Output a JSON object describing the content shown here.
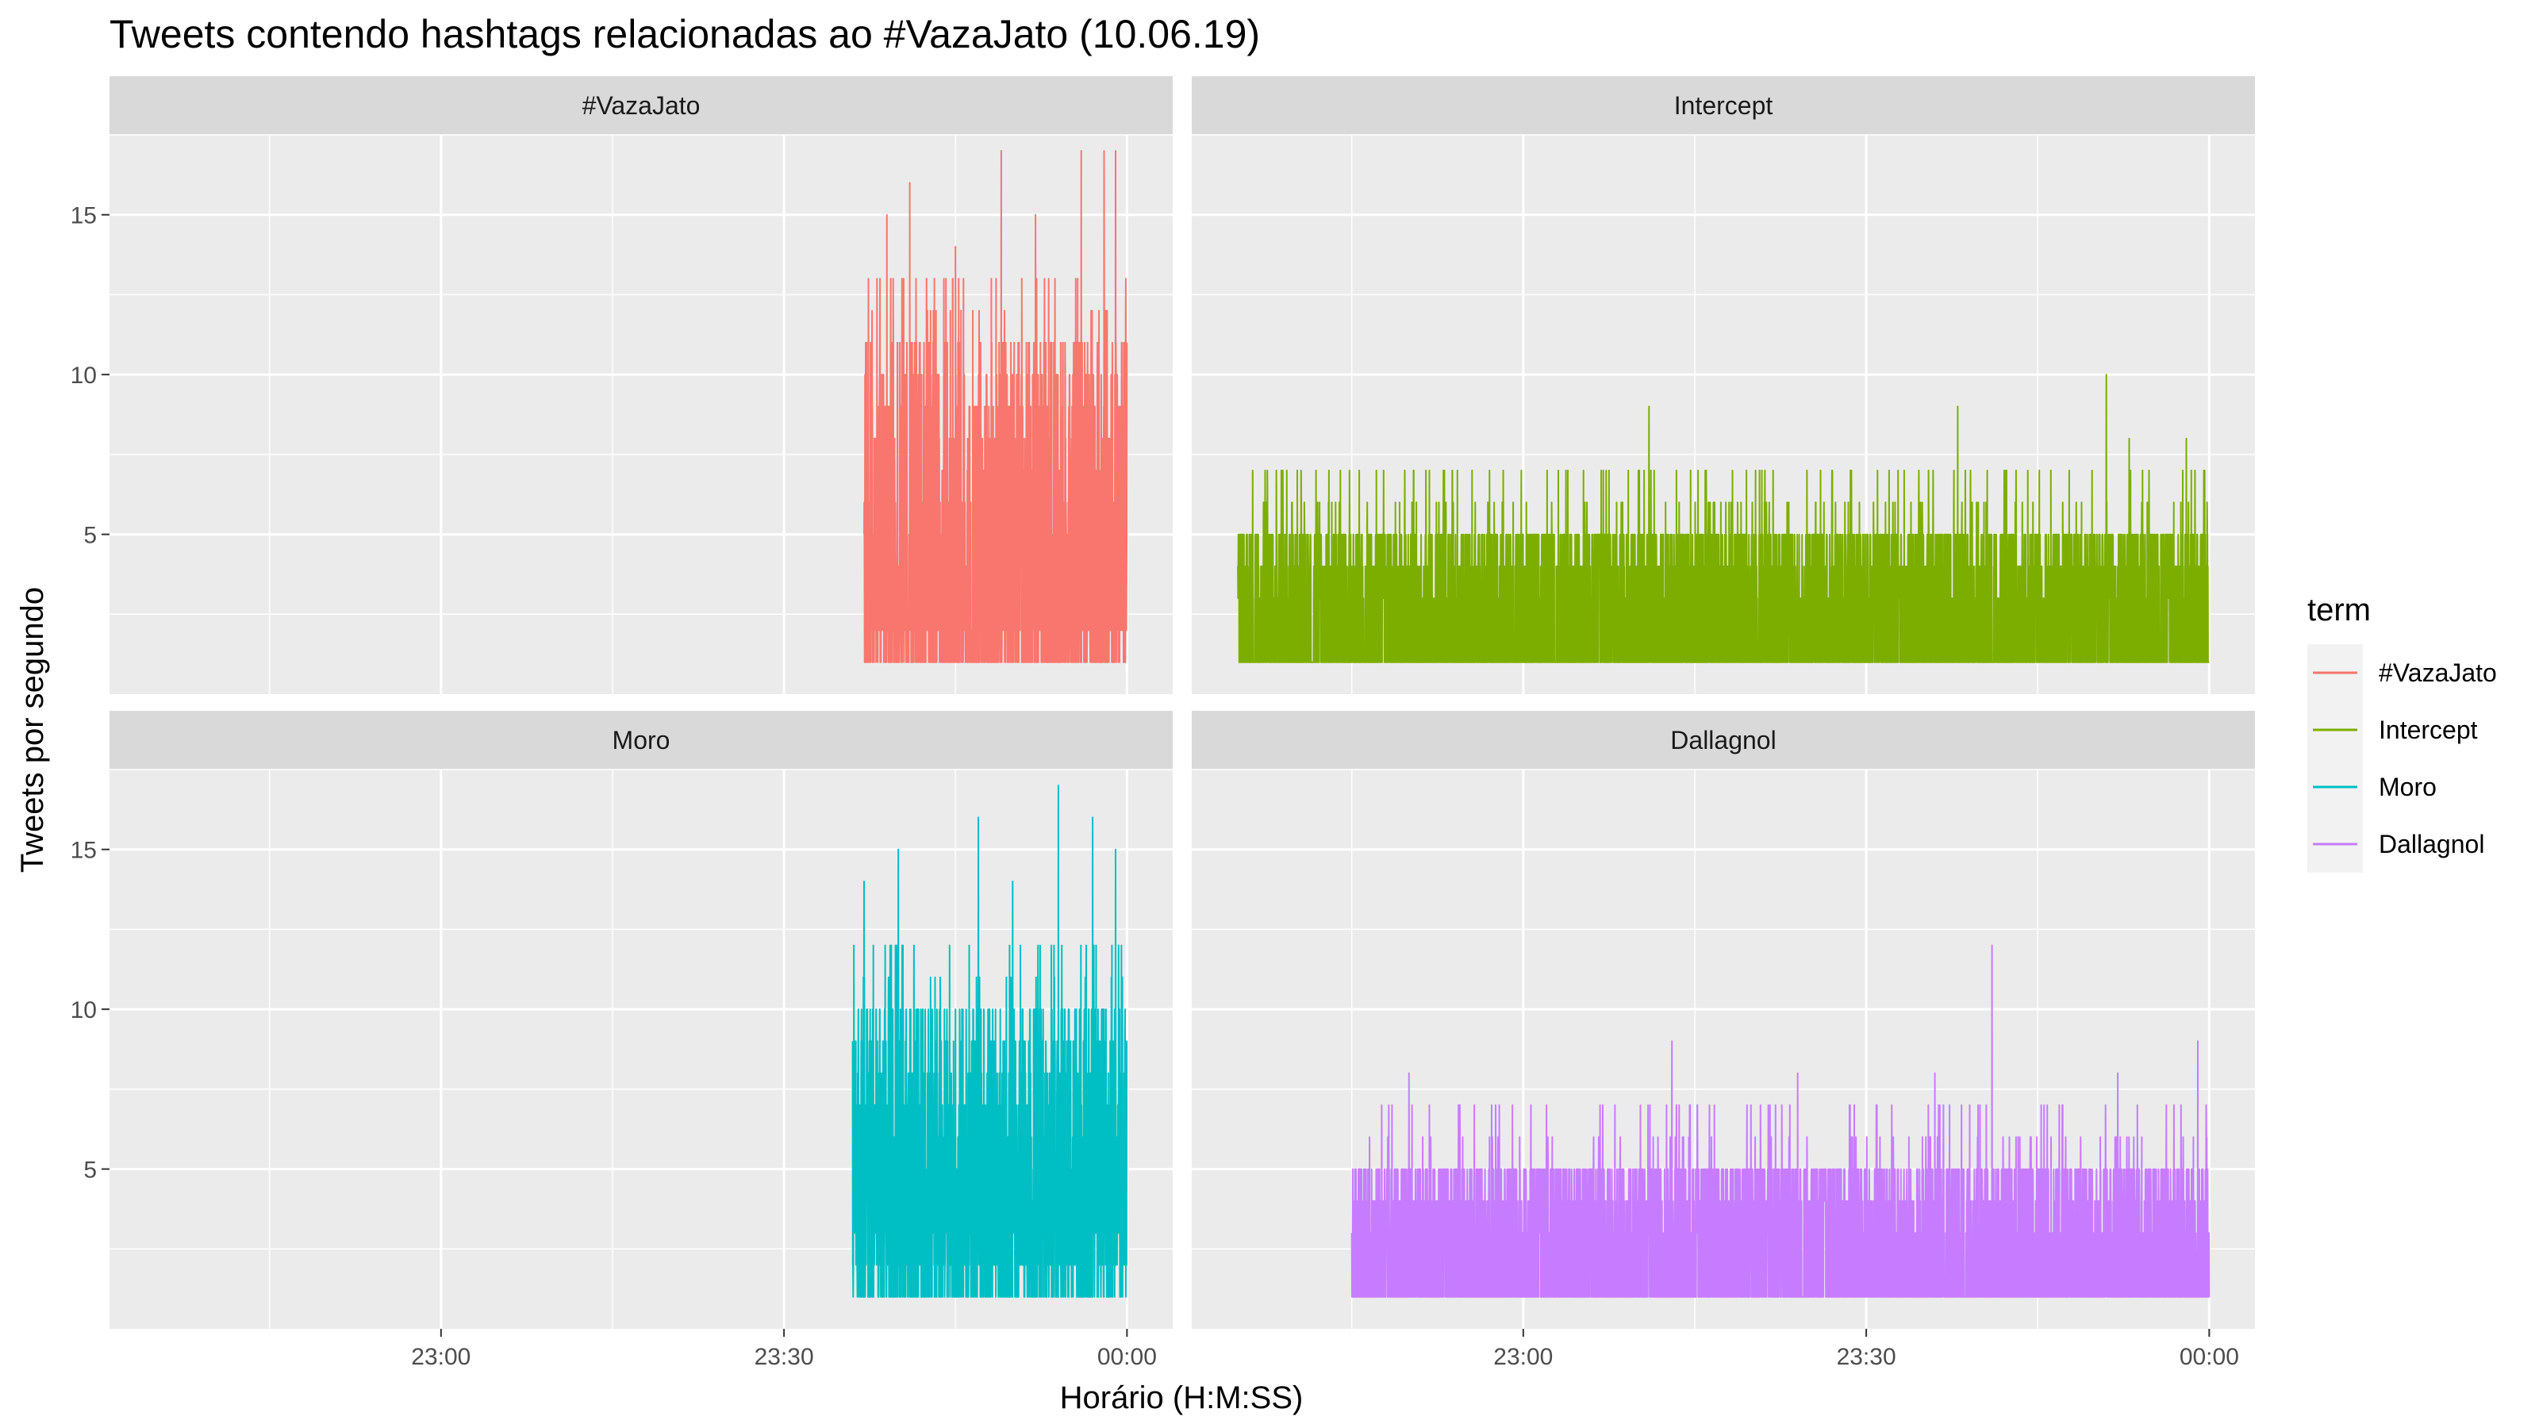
{
  "chart_data": {
    "type": "line",
    "title": "Tweets contendo hashtags relacionadas ao #VazaJato (10.06.19)",
    "xlabel": "Horário (H:M:SS)",
    "ylabel": "Tweets por segundo",
    "x_tick_labels": [
      "23:00",
      "23:30",
      "00:00"
    ],
    "x_tick_minutes": [
      -60,
      -30,
      0
    ],
    "xlim_minutes": [
      -89,
      4
    ],
    "y_ticks": [
      5,
      10,
      15
    ],
    "ylim": [
      0,
      17.5
    ],
    "grid": true,
    "facets": [
      "#VazaJato",
      "Intercept",
      "Moro",
      "Dallagnol"
    ],
    "legend": {
      "title": "term",
      "position": "right",
      "entries": [
        "#VazaJato",
        "Intercept",
        "Moro",
        "Dallagnol"
      ]
    },
    "series": [
      {
        "name": "#VazaJato",
        "color": "#F8766D",
        "x_start_minutes": -23,
        "x_end_minutes": 0,
        "base": [
          1,
          2
        ],
        "typical_range": [
          4,
          11
        ],
        "peaks": [
          [
            -21,
            15
          ],
          [
            -19,
            16
          ],
          [
            -11,
            17
          ],
          [
            -4,
            17
          ],
          [
            -2,
            17
          ],
          [
            -1,
            17
          ],
          [
            -15,
            14
          ],
          [
            -8,
            15
          ]
        ]
      },
      {
        "name": "Intercept",
        "color": "#7CAE00",
        "x_start_minutes": -85,
        "x_end_minutes": 0,
        "base": [
          1,
          1
        ],
        "typical_range": [
          3,
          5
        ],
        "peaks": [
          [
            -49,
            9
          ],
          [
            -22,
            9
          ],
          [
            -9,
            10
          ],
          [
            -7,
            8
          ],
          [
            -2,
            8
          ],
          [
            -44,
            7
          ],
          [
            -34,
            7
          ],
          [
            -28,
            7
          ]
        ]
      },
      {
        "name": "Moro",
        "color": "#00BFC4",
        "x_start_minutes": -24,
        "x_end_minutes": 0,
        "base": [
          1,
          3
        ],
        "typical_range": [
          4,
          10
        ],
        "peaks": [
          [
            -6,
            17
          ],
          [
            -23,
            14
          ],
          [
            -20,
            15
          ],
          [
            -13,
            16
          ],
          [
            -3,
            16
          ],
          [
            -1,
            15
          ],
          [
            -10,
            14
          ]
        ]
      },
      {
        "name": "Dallagnol",
        "color": "#C77CFF",
        "x_start_minutes": -75,
        "x_end_minutes": 0,
        "base": [
          1,
          1
        ],
        "typical_range": [
          3,
          5
        ],
        "peaks": [
          [
            -19,
            12
          ],
          [
            -1,
            9
          ],
          [
            -47,
            9
          ],
          [
            -70,
            8
          ],
          [
            -36,
            8
          ],
          [
            -24,
            8
          ],
          [
            -8,
            8
          ]
        ]
      }
    ]
  }
}
